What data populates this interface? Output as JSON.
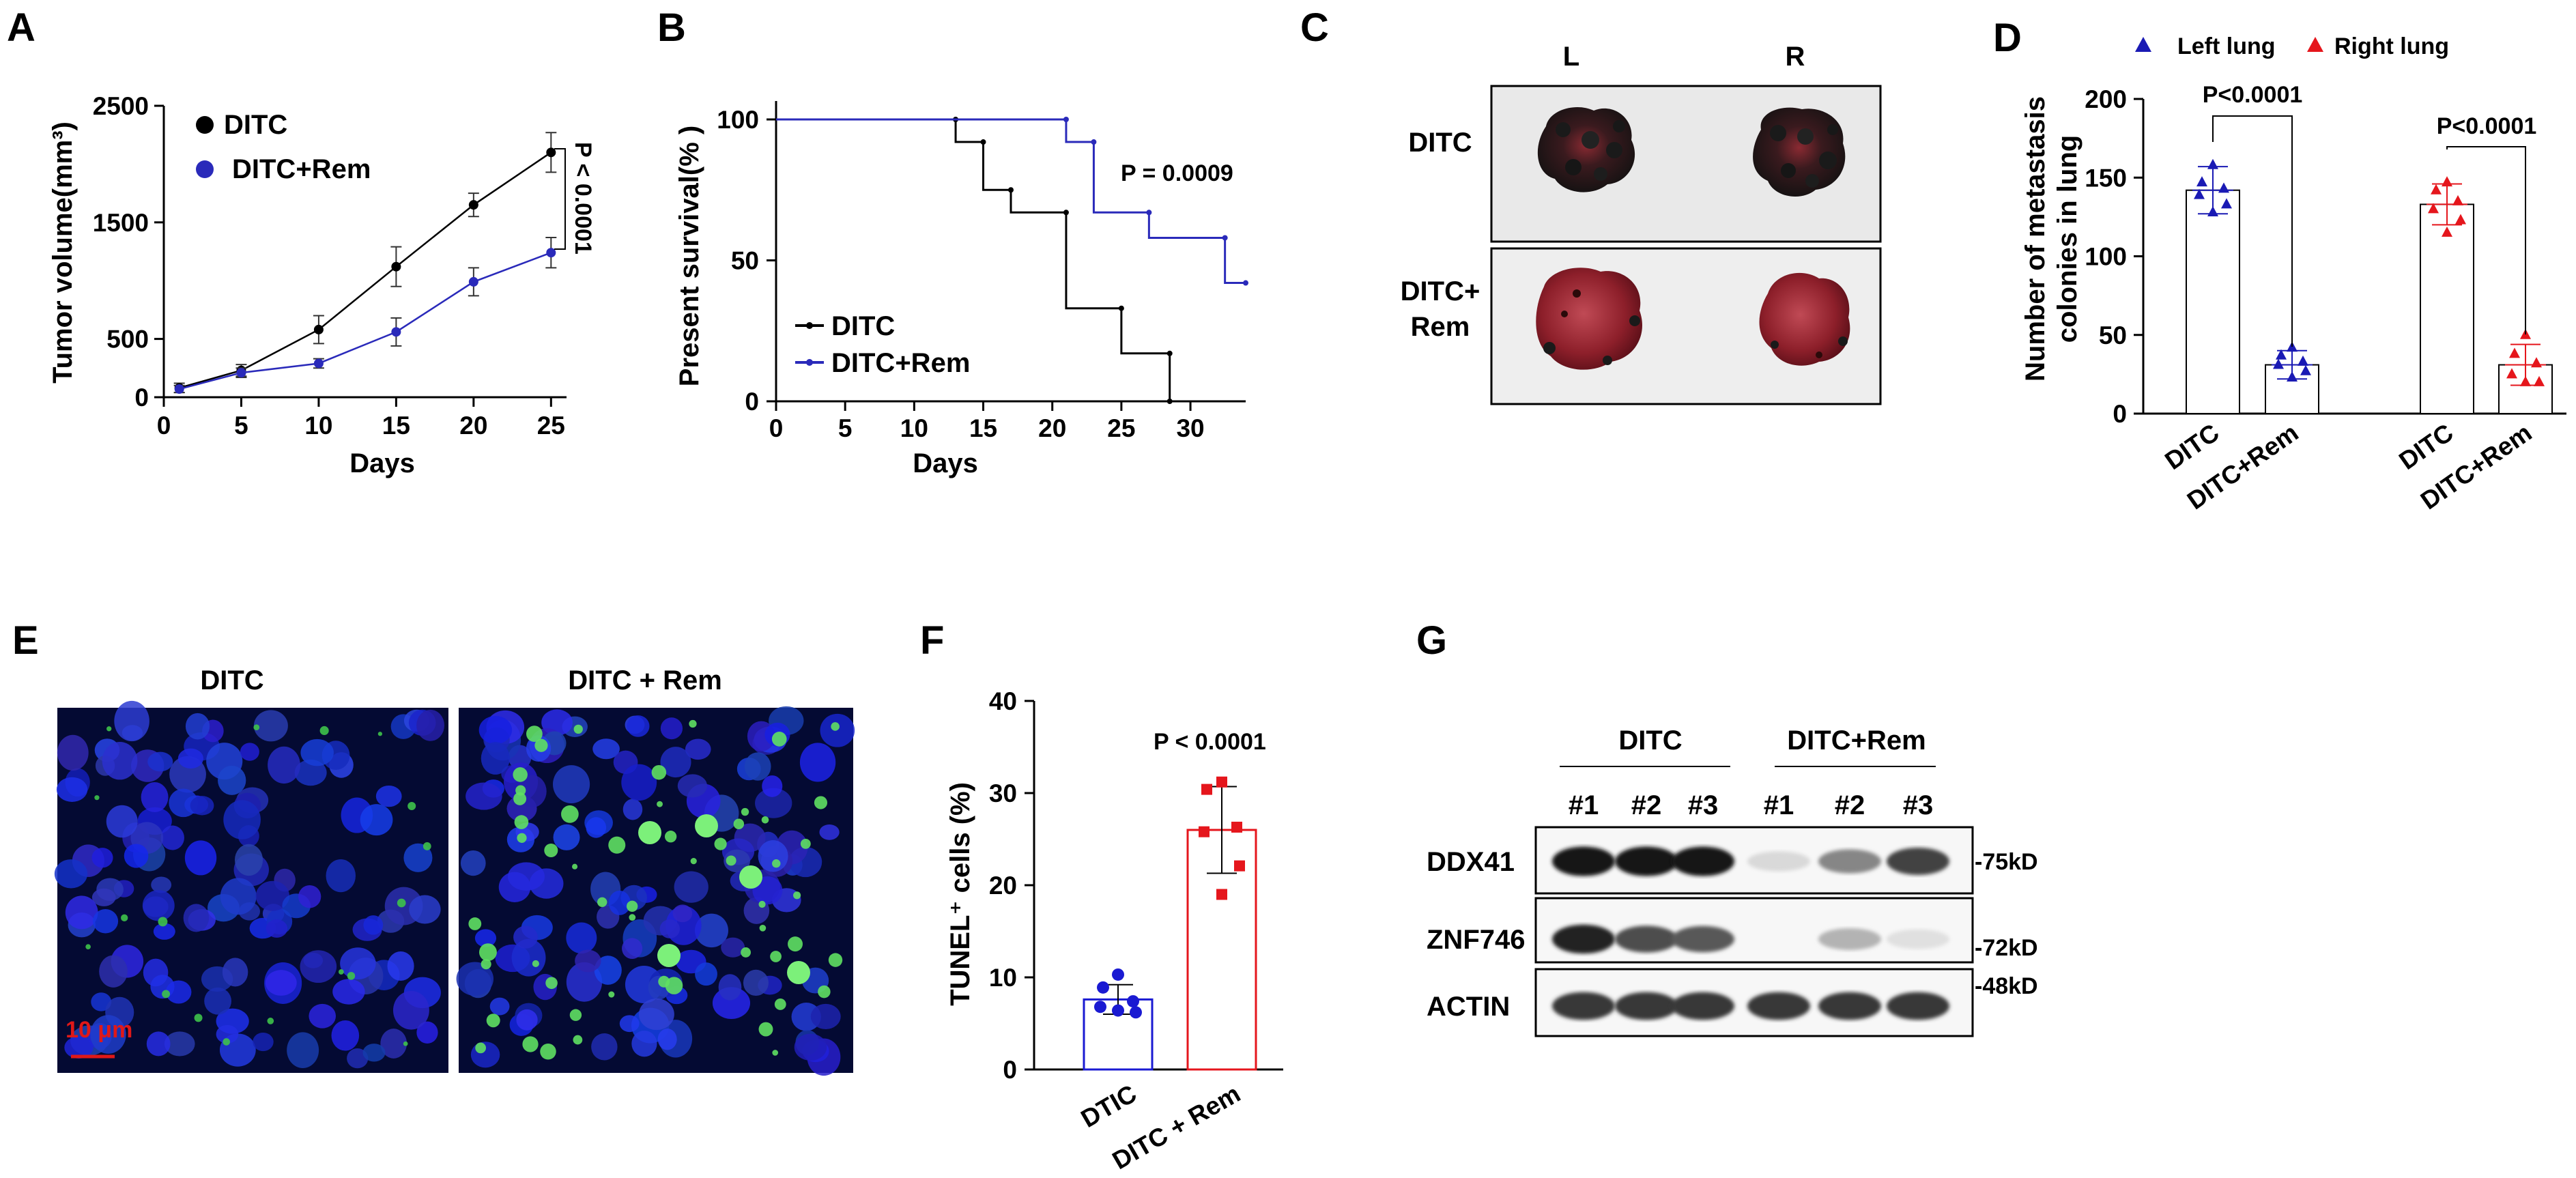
{
  "panels": {
    "A": {
      "label": "A",
      "chart_data": {
        "type": "line",
        "xlabel": "Days",
        "ylabel": "Tumor volume(mm³)",
        "xlim": [
          0,
          26
        ],
        "ylim": [
          0,
          2500
        ],
        "xticks": [
          "0",
          "5",
          "10",
          "15",
          "20",
          "25"
        ],
        "yticks": [
          "0",
          "500",
          "1500",
          "2500"
        ],
        "x": [
          1,
          5,
          10,
          15,
          20,
          25
        ],
        "series": [
          {
            "name": "DITC",
            "color": "#000000",
            "values": [
              80,
              230,
              580,
              1120,
              1650,
              2100
            ],
            "errors": [
              40,
              50,
              120,
              170,
              100,
              170
            ]
          },
          {
            "name": "DITC+Rem",
            "color": "#2a2aba",
            "values": [
              70,
              210,
              290,
              560,
              990,
              1240
            ],
            "errors": [
              30,
              40,
              40,
              120,
              120,
              130
            ]
          }
        ],
        "annotation": "P < 0.0001"
      }
    },
    "B": {
      "label": "B",
      "chart_data": {
        "type": "line",
        "xlabel": "Days",
        "ylabel": "Present survival(% )",
        "xlim": [
          0,
          34
        ],
        "ylim": [
          0,
          100
        ],
        "xticks": [
          "0",
          "5",
          "10",
          "15",
          "20",
          "25",
          "30"
        ],
        "yticks": [
          "0",
          "50",
          "100"
        ],
        "series": [
          {
            "name": "DITC",
            "color": "#000000",
            "steps": [
              [
                0,
                100
              ],
              [
                13,
                100
              ],
              [
                13,
                92
              ],
              [
                15,
                92
              ],
              [
                15,
                75
              ],
              [
                17,
                75
              ],
              [
                17,
                67
              ],
              [
                21,
                67
              ],
              [
                21,
                33
              ],
              [
                25,
                33
              ],
              [
                25,
                17
              ],
              [
                28.5,
                17
              ],
              [
                28.5,
                0
              ]
            ]
          },
          {
            "name": "DITC+Rem",
            "color": "#2a2aba",
            "steps": [
              [
                0,
                100
              ],
              [
                21,
                100
              ],
              [
                21,
                92
              ],
              [
                23,
                92
              ],
              [
                23,
                67
              ],
              [
                27,
                67
              ],
              [
                27,
                58
              ],
              [
                32.5,
                58
              ],
              [
                32.5,
                42
              ],
              [
                34,
                42
              ]
            ]
          }
        ],
        "annotation": "P = 0.0009"
      }
    },
    "C": {
      "label": "C",
      "col_labels": [
        "L",
        "R"
      ],
      "row_labels": [
        "DITC",
        "DITC+\nRem"
      ]
    },
    "D": {
      "label": "D",
      "chart_data": {
        "type": "bar",
        "ylabel": "Number of metastasis colonies in lung",
        "ylim": [
          0,
          200
        ],
        "yticks": [
          "0",
          "50",
          "100",
          "150",
          "200"
        ],
        "categories": [
          "DITC",
          "DITC+Rem",
          "DITC",
          "DITC+Rem"
        ],
        "groups": [
          "Left lung",
          "Left lung",
          "Right lung",
          "Right lung"
        ],
        "values": [
          142,
          31,
          133,
          31
        ],
        "errors": [
          15,
          9,
          13,
          13
        ],
        "points": [
          [
            158,
            147,
            143,
            139,
            133,
            128
          ],
          [
            42,
            37,
            33,
            31,
            27,
            23
          ],
          [
            147,
            142,
            135,
            130,
            123,
            115
          ],
          [
            50,
            38,
            32,
            25,
            20,
            20
          ]
        ],
        "legend": [
          {
            "name": "Left lung",
            "color": "#1a1ab4"
          },
          {
            "name": "Right lung",
            "color": "#e5161c"
          }
        ],
        "annotations": [
          "P<0.0001",
          "P<0.0001"
        ]
      }
    },
    "E": {
      "label": "E",
      "titles": [
        "DITC",
        "DITC + Rem"
      ],
      "scalebar": "10 μm"
    },
    "F": {
      "label": "F",
      "chart_data": {
        "type": "bar",
        "ylabel": "TUNEL⁺ cells (%)",
        "ylim": [
          0,
          40
        ],
        "yticks": [
          "0",
          "10",
          "20",
          "30",
          "40"
        ],
        "categories": [
          "DTIC",
          "DITC + Rem"
        ],
        "values": [
          7.6,
          26.0
        ],
        "errors": [
          1.6,
          4.7
        ],
        "points": [
          [
            10.3,
            8.9,
            7.4,
            6.8,
            6.2,
            6.4
          ],
          [
            31.2,
            30.4,
            26.3,
            25.8,
            22.1,
            19.0
          ]
        ],
        "colors": [
          "#1a1ad2",
          "#e5161c"
        ],
        "annotation": "P < 0.0001"
      }
    },
    "G": {
      "label": "G",
      "groups": [
        "DITC",
        "DITC+Rem"
      ],
      "lanes": [
        "#1",
        "#2",
        "#3",
        "#1",
        "#2",
        "#3"
      ],
      "rows": [
        {
          "name": "DDX41",
          "marker": "-75kD",
          "intensity": [
            0.95,
            0.95,
            0.95,
            0.08,
            0.45,
            0.75
          ]
        },
        {
          "name": "ZNF746",
          "marker": "-72kD",
          "intensity": [
            0.9,
            0.7,
            0.65,
            0.0,
            0.25,
            0.05
          ]
        },
        {
          "name": "ACTIN",
          "marker": "-48kD",
          "intensity": [
            0.8,
            0.8,
            0.8,
            0.8,
            0.8,
            0.8
          ]
        }
      ]
    }
  }
}
